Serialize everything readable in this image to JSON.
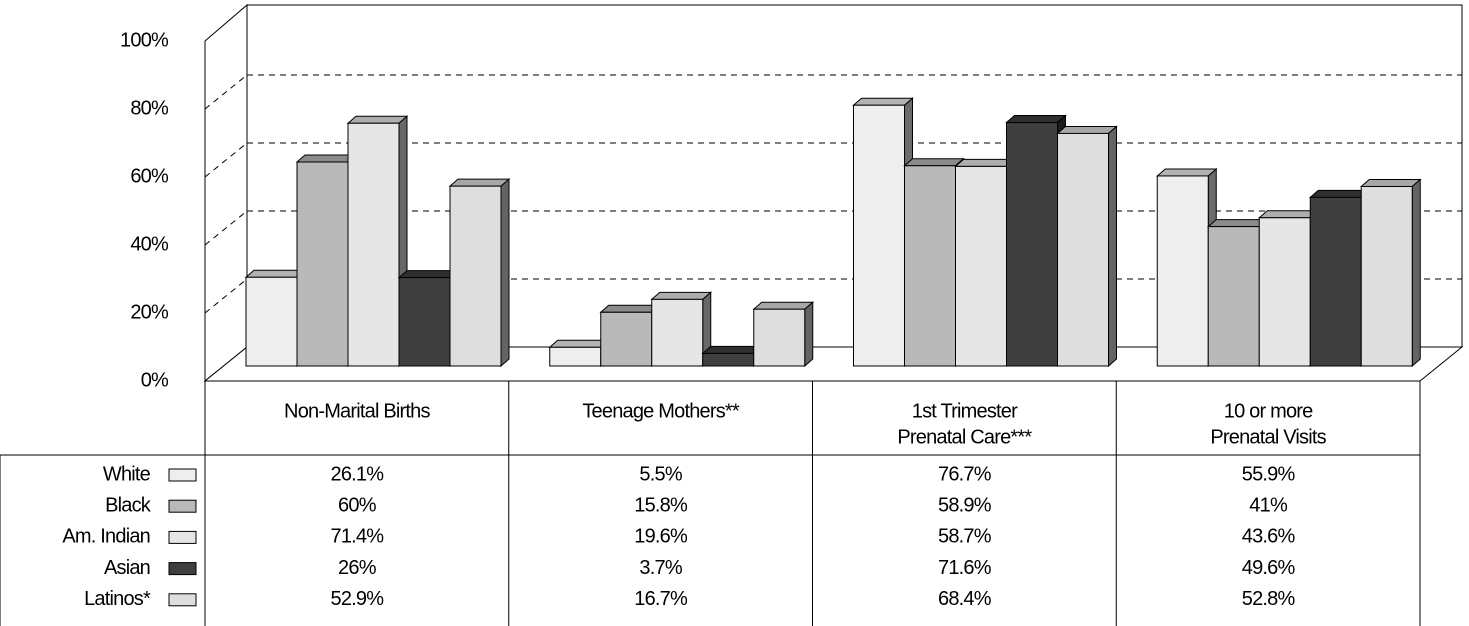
{
  "chart_data": {
    "type": "bar",
    "categories": [
      [
        "Non-Marital Births"
      ],
      [
        "Teenage Mothers**"
      ],
      [
        "1st Trimester",
        "Prenatal Care***"
      ],
      [
        "10 or more",
        "Prenatal Visits"
      ]
    ],
    "ylim": [
      0,
      100
    ],
    "yticks": [
      {
        "value": 0,
        "label": "0%"
      },
      {
        "value": 20,
        "label": "20%"
      },
      {
        "value": 40,
        "label": "40%"
      },
      {
        "value": 60,
        "label": "60%"
      },
      {
        "value": 80,
        "label": "80%"
      },
      {
        "value": 100,
        "label": "100%"
      }
    ],
    "grid": true,
    "series": [
      {
        "name": "White",
        "color": "#eeeeee",
        "values": [
          26.1,
          5.5,
          76.7,
          55.9
        ],
        "value_labels": [
          "26.1%",
          "5.5%",
          "76.7%",
          "55.9%"
        ]
      },
      {
        "name": "Black",
        "color": "#b9b9b9",
        "values": [
          60,
          15.8,
          58.9,
          41
        ],
        "value_labels": [
          "60%",
          "15.8%",
          "58.9%",
          "41%"
        ]
      },
      {
        "name": "Am. Indian",
        "color": "#e6e6e6",
        "values": [
          71.4,
          19.6,
          58.7,
          43.6
        ],
        "value_labels": [
          "71.4%",
          "19.6%",
          "58.7%",
          "43.6%"
        ]
      },
      {
        "name": "Asian",
        "color": "#3f3f3f",
        "values": [
          26,
          3.7,
          71.6,
          49.6
        ],
        "value_labels": [
          "26%",
          "3.7%",
          "71.6%",
          "49.6%"
        ]
      },
      {
        "name": "Latinos*",
        "color": "#dedede",
        "values": [
          52.9,
          16.7,
          68.4,
          52.8
        ],
        "value_labels": [
          "52.9%",
          "16.7%",
          "68.4%",
          "52.8%"
        ]
      }
    ]
  }
}
